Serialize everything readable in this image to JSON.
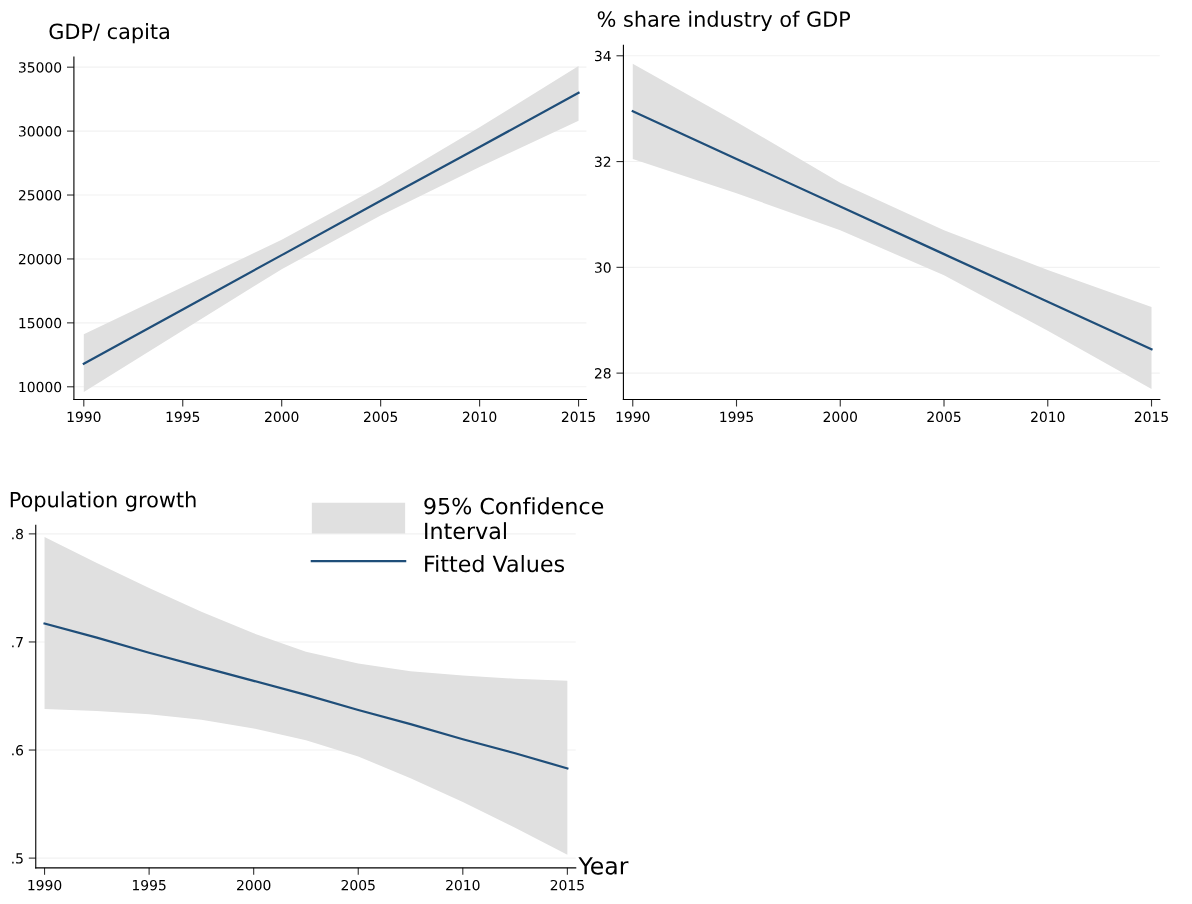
{
  "chart_data": [
    {
      "type": "line",
      "title": "GDP/ capita",
      "xlim": [
        1989.5,
        2015.4
      ],
      "xticks": [
        1990,
        1995,
        2000,
        2005,
        2010,
        2015
      ],
      "ylim": [
        9000,
        35800
      ],
      "yticks": [
        10000,
        15000,
        20000,
        25000,
        30000,
        35000
      ],
      "grid": "y",
      "legend": false,
      "x": [
        1990,
        1995,
        2000,
        2005,
        2010,
        2015
      ],
      "series": [
        {
          "color": "#1f4e79",
          "values": [
            11800,
            16050,
            20300,
            24550,
            28750,
            33000
          ],
          "lower": [
            9600,
            14400,
            19200,
            23400,
            27200,
            30800
          ],
          "upper": [
            14100,
            17800,
            21500,
            25700,
            30300,
            35100
          ]
        }
      ]
    },
    {
      "type": "line",
      "title": "% share industry of GDP",
      "xlim": [
        1989.55,
        2015.4
      ],
      "xticks": [
        1990,
        1995,
        2000,
        2005,
        2010,
        2015
      ],
      "ylim": [
        27.5,
        34.2
      ],
      "yticks": [
        28,
        30,
        32,
        34
      ],
      "grid": "y",
      "legend": false,
      "x": [
        1990,
        1995,
        2000,
        2005,
        2010,
        2015
      ],
      "series": [
        {
          "color": "#1f4e79",
          "values": [
            32.95,
            32.05,
            31.15,
            30.25,
            29.35,
            28.45
          ],
          "lower": [
            32.05,
            31.4,
            30.7,
            29.85,
            28.8,
            27.7
          ],
          "upper": [
            33.85,
            32.75,
            31.6,
            30.7,
            29.95,
            29.25
          ]
        }
      ]
    },
    {
      "type": "line",
      "title": "Population growth",
      "xlabel": "Year",
      "xlim": [
        1989.58,
        2015.4
      ],
      "xticks": [
        1990,
        1995,
        2000,
        2005,
        2010,
        2015
      ],
      "ylim": [
        0.491,
        0.808
      ],
      "yticks": [
        {
          "value": 0.5,
          "label": ".5"
        },
        {
          "value": 0.6,
          "label": ".6"
        },
        {
          "value": 0.7,
          "label": ".7"
        },
        {
          "value": 0.8,
          "label": ".8"
        }
      ],
      "grid": "y",
      "legend": "top right",
      "annotations": [
        "95% Confidence\nInterval"
      ],
      "x": [
        1990,
        1992.5,
        1995,
        1997.5,
        2000,
        2002.5,
        2005,
        2007.5,
        2010,
        2012.5,
        2015
      ],
      "series": [
        {
          "name": "Fitted Values",
          "color": "#1f4e79",
          "values": [
            0.717,
            0.704,
            0.69,
            0.677,
            0.664,
            0.651,
            0.637,
            0.624,
            0.61,
            0.597,
            0.583
          ],
          "lower": [
            0.638,
            0.636,
            0.633,
            0.628,
            0.62,
            0.609,
            0.594,
            0.574,
            0.552,
            0.528,
            0.503
          ],
          "upper": [
            0.797,
            0.773,
            0.75,
            0.728,
            0.708,
            0.691,
            0.68,
            0.673,
            0.669,
            0.666,
            0.664
          ]
        }
      ]
    }
  ]
}
